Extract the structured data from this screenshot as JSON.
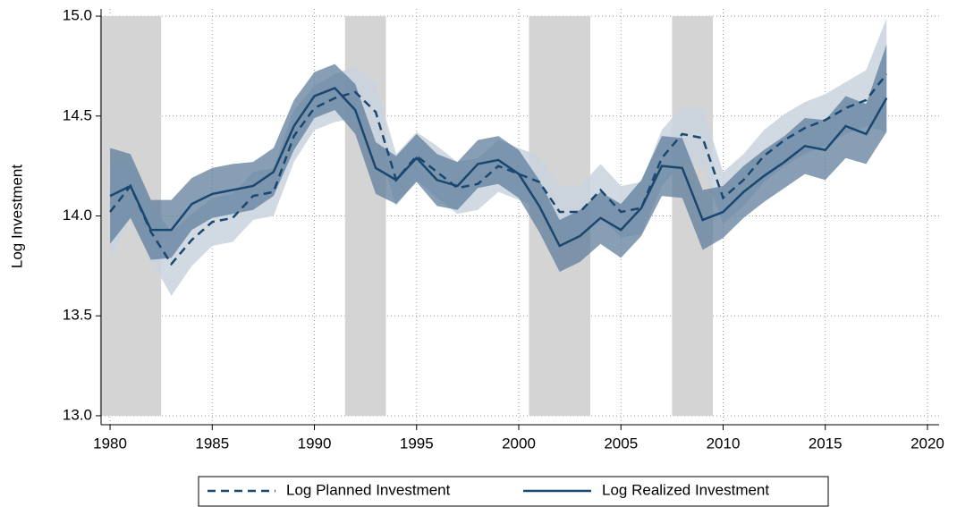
{
  "chart_data": {
    "type": "line",
    "y_label": "Log Investment",
    "x": [
      1980,
      1981,
      1982,
      1983,
      1984,
      1985,
      1986,
      1987,
      1988,
      1989,
      1990,
      1991,
      1992,
      1993,
      1994,
      1995,
      1996,
      1997,
      1998,
      1999,
      2000,
      2001,
      2002,
      2003,
      2004,
      2005,
      2006,
      2007,
      2008,
      2009,
      2010,
      2011,
      2012,
      2013,
      2014,
      2015,
      2016,
      2017,
      2018
    ],
    "series": [
      {
        "name": "Log Planned Investment",
        "color": "#1a476f",
        "dashed": true,
        "band_color": "#c9d3de",
        "values": [
          14.02,
          14.15,
          13.92,
          13.76,
          13.88,
          13.97,
          13.99,
          14.1,
          14.12,
          14.4,
          14.54,
          14.59,
          14.62,
          14.52,
          14.18,
          14.3,
          14.22,
          14.14,
          14.16,
          14.25,
          14.21,
          14.17,
          14.02,
          14.02,
          14.13,
          14.02,
          14.04,
          14.29,
          14.41,
          14.39,
          14.09,
          14.18,
          14.3,
          14.38,
          14.44,
          14.48,
          14.54,
          14.58,
          14.71
        ],
        "lower": [
          13.77,
          14.0,
          13.78,
          13.6,
          13.75,
          13.85,
          13.87,
          13.98,
          14.0,
          14.27,
          14.43,
          14.47,
          14.49,
          14.38,
          14.05,
          14.18,
          14.09,
          14.01,
          14.03,
          14.12,
          14.08,
          14.04,
          13.89,
          13.89,
          14.0,
          13.89,
          13.91,
          14.15,
          14.27,
          14.24,
          13.96,
          14.05,
          14.17,
          14.25,
          14.31,
          14.35,
          14.41,
          14.45,
          14.42
        ],
        "upper": [
          14.27,
          14.3,
          14.06,
          13.92,
          14.01,
          14.09,
          14.11,
          14.22,
          14.24,
          14.53,
          14.65,
          14.71,
          14.75,
          14.66,
          14.31,
          14.42,
          14.35,
          14.27,
          14.29,
          14.38,
          14.34,
          14.3,
          14.15,
          14.15,
          14.26,
          14.15,
          14.17,
          14.43,
          14.55,
          14.54,
          14.22,
          14.31,
          14.43,
          14.51,
          14.57,
          14.61,
          14.67,
          14.73,
          14.99
        ]
      },
      {
        "name": "Log Realized Investment",
        "color": "#1a476f",
        "dashed": false,
        "band_color": "#5f7d9c",
        "values": [
          14.1,
          14.15,
          13.93,
          13.93,
          14.06,
          14.11,
          14.13,
          14.15,
          14.22,
          14.45,
          14.6,
          14.64,
          14.53,
          14.24,
          14.18,
          14.29,
          14.18,
          14.15,
          14.26,
          14.28,
          14.21,
          14.05,
          13.85,
          13.9,
          13.99,
          13.93,
          14.04,
          14.25,
          14.24,
          13.98,
          14.02,
          14.12,
          14.2,
          14.27,
          14.35,
          14.33,
          14.45,
          14.41,
          14.59
        ],
        "lower": [
          13.86,
          13.99,
          13.78,
          13.79,
          13.93,
          13.99,
          14.01,
          14.03,
          14.1,
          14.33,
          14.49,
          14.53,
          14.41,
          14.11,
          14.06,
          14.17,
          14.05,
          14.03,
          14.14,
          14.16,
          14.09,
          13.92,
          13.72,
          13.77,
          13.86,
          13.79,
          13.9,
          14.1,
          14.09,
          13.83,
          13.89,
          13.99,
          14.07,
          14.14,
          14.21,
          14.18,
          14.29,
          14.26,
          14.42
        ],
        "upper": [
          14.34,
          14.31,
          14.08,
          14.08,
          14.19,
          14.24,
          14.26,
          14.27,
          14.34,
          14.58,
          14.72,
          14.76,
          14.66,
          14.37,
          14.3,
          14.41,
          14.31,
          14.27,
          14.38,
          14.4,
          14.33,
          14.18,
          13.98,
          14.03,
          14.12,
          14.06,
          14.18,
          14.4,
          14.39,
          14.13,
          14.15,
          14.25,
          14.33,
          14.4,
          14.49,
          14.48,
          14.6,
          14.56,
          14.86
        ]
      }
    ],
    "shaded": [
      {
        "start": 1979.5,
        "end": 1982.5
      },
      {
        "start": 1991.5,
        "end": 1993.5
      },
      {
        "start": 2000.5,
        "end": 2003.5
      },
      {
        "start": 2007.5,
        "end": 2009.5
      }
    ],
    "shade_color": "#d4d4d4",
    "xlim": [
      1979.56,
      2020.57
    ],
    "ylim": [
      12.955,
      15.036
    ],
    "xticks": [
      1980,
      1985,
      1990,
      1995,
      2000,
      2005,
      2010,
      2015,
      2020
    ],
    "yticks": [
      {
        "value": 13,
        "label": "13.0"
      },
      13.5,
      {
        "value": 14,
        "label": "14.0"
      },
      14.5,
      {
        "value": 15,
        "label": "15.0"
      }
    ],
    "grid": true,
    "legend": "bottom"
  }
}
